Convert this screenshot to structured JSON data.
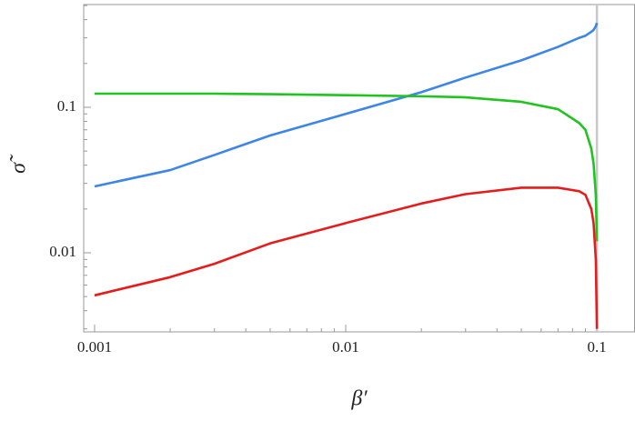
{
  "chart_data": {
    "type": "line",
    "x_label": "β′",
    "y_label": "σ̃",
    "log_x": true,
    "log_y": true,
    "xlim": [
      0.000905,
      0.1418
    ],
    "ylim": [
      0.00286,
      0.508
    ],
    "xticks": [
      0.001,
      0.01,
      0.1
    ],
    "yticks": [
      0.01,
      0.1
    ],
    "x_minor_ticks": [
      0.002,
      0.003,
      0.004,
      0.005,
      0.006,
      0.007,
      0.008,
      0.009,
      0.02,
      0.03,
      0.04,
      0.05,
      0.06,
      0.07,
      0.08,
      0.09
    ],
    "y_minor_ticks": [
      0.003,
      0.004,
      0.005,
      0.006,
      0.007,
      0.008,
      0.009,
      0.02,
      0.03,
      0.04,
      0.05,
      0.06,
      0.07,
      0.08,
      0.09,
      0.2,
      0.3,
      0.4,
      0.5
    ],
    "vline": 0.1,
    "vline_color": "#c8c8c8",
    "x": [
      0.001,
      0.002,
      0.003,
      0.005,
      0.01,
      0.02,
      0.03,
      0.05,
      0.07,
      0.085,
      0.09,
      0.095,
      0.097,
      0.099,
      0.1
    ],
    "series": [
      {
        "name": "blue",
        "color": "#3d85e6",
        "values": [
          0.0286,
          0.037,
          0.047,
          0.064,
          0.09,
          0.127,
          0.16,
          0.21,
          0.26,
          0.3,
          0.31,
          0.33,
          0.34,
          0.36,
          0.38
        ]
      },
      {
        "name": "green",
        "color": "#1fc41f",
        "values": [
          0.124,
          0.124,
          0.124,
          0.123,
          0.121,
          0.119,
          0.117,
          0.109,
          0.097,
          0.078,
          0.07,
          0.052,
          0.041,
          0.025,
          0.012
        ]
      },
      {
        "name": "red",
        "color": "#e61c1c",
        "values": [
          0.0051,
          0.0068,
          0.0084,
          0.0116,
          0.016,
          0.0218,
          0.0253,
          0.028,
          0.028,
          0.0265,
          0.025,
          0.02,
          0.016,
          0.009,
          0.003
        ]
      }
    ]
  }
}
